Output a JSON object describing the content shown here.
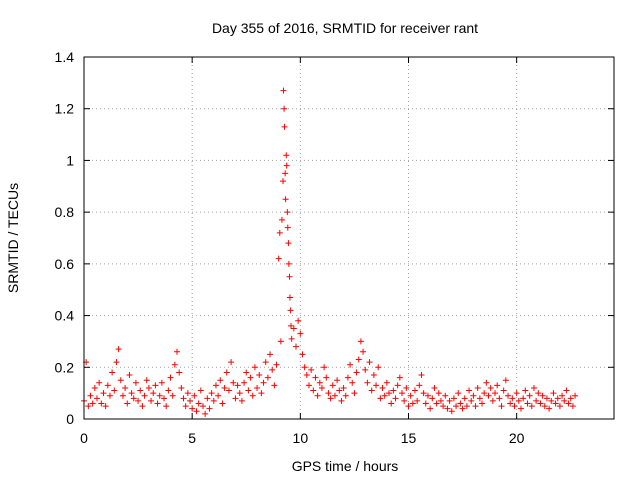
{
  "chart_data": {
    "type": "scatter",
    "title": "Day 355 of 2016, SRMTID for receiver rant",
    "xlabel": "GPS time / hours",
    "ylabel": "SRMTID / TECUs",
    "xlim": [
      0,
      24.5
    ],
    "ylim": [
      0,
      1.4
    ],
    "xticks": [
      0,
      5,
      10,
      15,
      20
    ],
    "xtick_labels": [
      "0",
      "5",
      "10",
      "15",
      "20"
    ],
    "yticks": [
      0,
      0.2,
      0.4,
      0.6,
      0.8,
      1,
      1.2,
      1.4
    ],
    "ytick_labels": [
      "0",
      "0.2",
      "0.4",
      "0.6",
      "0.8",
      "1",
      "1.2",
      "1.4"
    ],
    "grid": true,
    "marker": "+",
    "color": "#ff0000",
    "series": [
      {
        "name": "SRMTID",
        "points": [
          [
            0.0,
            0.07
          ],
          [
            0.1,
            0.22
          ],
          [
            0.2,
            0.05
          ],
          [
            0.3,
            0.09
          ],
          [
            0.4,
            0.06
          ],
          [
            0.5,
            0.12
          ],
          [
            0.6,
            0.08
          ],
          [
            0.7,
            0.14
          ],
          [
            0.8,
            0.06
          ],
          [
            0.9,
            0.1
          ],
          [
            1.0,
            0.05
          ],
          [
            1.1,
            0.13
          ],
          [
            1.2,
            0.09
          ],
          [
            1.3,
            0.18
          ],
          [
            1.4,
            0.11
          ],
          [
            1.5,
            0.22
          ],
          [
            1.6,
            0.27
          ],
          [
            1.7,
            0.15
          ],
          [
            1.8,
            0.09
          ],
          [
            1.9,
            0.12
          ],
          [
            2.0,
            0.06
          ],
          [
            2.1,
            0.17
          ],
          [
            2.2,
            0.1
          ],
          [
            2.3,
            0.08
          ],
          [
            2.4,
            0.14
          ],
          [
            2.5,
            0.07
          ],
          [
            2.6,
            0.11
          ],
          [
            2.7,
            0.05
          ],
          [
            2.8,
            0.09
          ],
          [
            2.9,
            0.15
          ],
          [
            3.0,
            0.12
          ],
          [
            3.1,
            0.07
          ],
          [
            3.2,
            0.1
          ],
          [
            3.3,
            0.13
          ],
          [
            3.4,
            0.06
          ],
          [
            3.5,
            0.09
          ],
          [
            3.6,
            0.14
          ],
          [
            3.7,
            0.08
          ],
          [
            3.8,
            0.05
          ],
          [
            3.9,
            0.11
          ],
          [
            4.0,
            0.16
          ],
          [
            4.1,
            0.09
          ],
          [
            4.2,
            0.21
          ],
          [
            4.3,
            0.26
          ],
          [
            4.4,
            0.18
          ],
          [
            4.5,
            0.12
          ],
          [
            4.6,
            0.08
          ],
          [
            4.7,
            0.05
          ],
          [
            4.8,
            0.1
          ],
          [
            4.9,
            0.07
          ],
          [
            5.0,
            0.04
          ],
          [
            5.1,
            0.09
          ],
          [
            5.2,
            0.03
          ],
          [
            5.3,
            0.06
          ],
          [
            5.4,
            0.11
          ],
          [
            5.5,
            0.05
          ],
          [
            5.6,
            0.02
          ],
          [
            5.7,
            0.08
          ],
          [
            5.8,
            0.04
          ],
          [
            5.9,
            0.1
          ],
          [
            6.0,
            0.07
          ],
          [
            6.1,
            0.13
          ],
          [
            6.2,
            0.09
          ],
          [
            6.3,
            0.15
          ],
          [
            6.4,
            0.06
          ],
          [
            6.5,
            0.12
          ],
          [
            6.6,
            0.18
          ],
          [
            6.7,
            0.11
          ],
          [
            6.8,
            0.22
          ],
          [
            6.9,
            0.14
          ],
          [
            7.0,
            0.08
          ],
          [
            7.1,
            0.13
          ],
          [
            7.2,
            0.1
          ],
          [
            7.3,
            0.07
          ],
          [
            7.4,
            0.14
          ],
          [
            7.5,
            0.18
          ],
          [
            7.6,
            0.11
          ],
          [
            7.7,
            0.16
          ],
          [
            7.8,
            0.09
          ],
          [
            7.9,
            0.2
          ],
          [
            8.0,
            0.12
          ],
          [
            8.1,
            0.17
          ],
          [
            8.2,
            0.1
          ],
          [
            8.3,
            0.14
          ],
          [
            8.4,
            0.22
          ],
          [
            8.5,
            0.16
          ],
          [
            8.6,
            0.25
          ],
          [
            8.7,
            0.19
          ],
          [
            8.8,
            0.13
          ],
          [
            8.9,
            0.21
          ],
          [
            9.0,
            0.62
          ],
          [
            9.05,
            0.72
          ],
          [
            9.1,
            0.3
          ],
          [
            9.15,
            0.77
          ],
          [
            9.2,
            0.92
          ],
          [
            9.22,
            1.27
          ],
          [
            9.25,
            1.2
          ],
          [
            9.27,
            1.13
          ],
          [
            9.3,
            0.95
          ],
          [
            9.32,
            0.85
          ],
          [
            9.35,
            1.02
          ],
          [
            9.37,
            0.98
          ],
          [
            9.4,
            0.8
          ],
          [
            9.42,
            0.74
          ],
          [
            9.45,
            0.68
          ],
          [
            9.47,
            0.6
          ],
          [
            9.5,
            0.55
          ],
          [
            9.52,
            0.47
          ],
          [
            9.55,
            0.42
          ],
          [
            9.57,
            0.36
          ],
          [
            9.6,
            0.31
          ],
          [
            9.7,
            0.35
          ],
          [
            9.8,
            0.28
          ],
          [
            9.9,
            0.38
          ],
          [
            10.0,
            0.33
          ],
          [
            10.1,
            0.25
          ],
          [
            10.2,
            0.2
          ],
          [
            10.3,
            0.17
          ],
          [
            10.4,
            0.13
          ],
          [
            10.5,
            0.19
          ],
          [
            10.6,
            0.11
          ],
          [
            10.7,
            0.16
          ],
          [
            10.8,
            0.09
          ],
          [
            10.9,
            0.14
          ],
          [
            11.0,
            0.12
          ],
          [
            11.1,
            0.2
          ],
          [
            11.2,
            0.16
          ],
          [
            11.3,
            0.1
          ],
          [
            11.4,
            0.08
          ],
          [
            11.5,
            0.13
          ],
          [
            11.6,
            0.09
          ],
          [
            11.7,
            0.15
          ],
          [
            11.8,
            0.11
          ],
          [
            11.9,
            0.07
          ],
          [
            12.0,
            0.12
          ],
          [
            12.1,
            0.09
          ],
          [
            12.2,
            0.16
          ],
          [
            12.3,
            0.21
          ],
          [
            12.4,
            0.14
          ],
          [
            12.5,
            0.1
          ],
          [
            12.6,
            0.18
          ],
          [
            12.7,
            0.23
          ],
          [
            12.8,
            0.3
          ],
          [
            12.9,
            0.26
          ],
          [
            13.0,
            0.19
          ],
          [
            13.1,
            0.14
          ],
          [
            13.2,
            0.22
          ],
          [
            13.3,
            0.11
          ],
          [
            13.4,
            0.17
          ],
          [
            13.5,
            0.13
          ],
          [
            13.6,
            0.2
          ],
          [
            13.7,
            0.08
          ],
          [
            13.8,
            0.12
          ],
          [
            13.9,
            0.09
          ],
          [
            14.0,
            0.14
          ],
          [
            14.1,
            0.1
          ],
          [
            14.2,
            0.06
          ],
          [
            14.3,
            0.11
          ],
          [
            14.4,
            0.08
          ],
          [
            14.5,
            0.13
          ],
          [
            14.6,
            0.16
          ],
          [
            14.7,
            0.1
          ],
          [
            14.8,
            0.07
          ],
          [
            14.9,
            0.12
          ],
          [
            15.0,
            0.05
          ],
          [
            15.1,
            0.09
          ],
          [
            15.2,
            0.06
          ],
          [
            15.3,
            0.11
          ],
          [
            15.4,
            0.07
          ],
          [
            15.5,
            0.13
          ],
          [
            15.6,
            0.17
          ],
          [
            15.7,
            0.1
          ],
          [
            15.8,
            0.06
          ],
          [
            15.9,
            0.09
          ],
          [
            16.0,
            0.04
          ],
          [
            16.1,
            0.08
          ],
          [
            16.2,
            0.12
          ],
          [
            16.3,
            0.06
          ],
          [
            16.4,
            0.1
          ],
          [
            16.5,
            0.07
          ],
          [
            16.6,
            0.05
          ],
          [
            16.7,
            0.09
          ],
          [
            16.8,
            0.04
          ],
          [
            16.9,
            0.07
          ],
          [
            17.0,
            0.03
          ],
          [
            17.1,
            0.08
          ],
          [
            17.2,
            0.05
          ],
          [
            17.3,
            0.1
          ],
          [
            17.4,
            0.06
          ],
          [
            17.5,
            0.04
          ],
          [
            17.6,
            0.08
          ],
          [
            17.7,
            0.05
          ],
          [
            17.8,
            0.11
          ],
          [
            17.9,
            0.07
          ],
          [
            18.0,
            0.09
          ],
          [
            18.1,
            0.05
          ],
          [
            18.2,
            0.12
          ],
          [
            18.3,
            0.08
          ],
          [
            18.4,
            0.06
          ],
          [
            18.5,
            0.1
          ],
          [
            18.6,
            0.14
          ],
          [
            18.7,
            0.09
          ],
          [
            18.8,
            0.12
          ],
          [
            18.9,
            0.07
          ],
          [
            19.0,
            0.1
          ],
          [
            19.1,
            0.13
          ],
          [
            19.2,
            0.08
          ],
          [
            19.3,
            0.05
          ],
          [
            19.4,
            0.11
          ],
          [
            19.5,
            0.15
          ],
          [
            19.6,
            0.09
          ],
          [
            19.7,
            0.06
          ],
          [
            19.8,
            0.08
          ],
          [
            19.9,
            0.05
          ],
          [
            20.0,
            0.1
          ],
          [
            20.1,
            0.07
          ],
          [
            20.2,
            0.04
          ],
          [
            20.3,
            0.08
          ],
          [
            20.4,
            0.11
          ],
          [
            20.5,
            0.06
          ],
          [
            20.6,
            0.09
          ],
          [
            20.7,
            0.05
          ],
          [
            20.8,
            0.12
          ],
          [
            20.9,
            0.07
          ],
          [
            21.0,
            0.1
          ],
          [
            21.1,
            0.06
          ],
          [
            21.2,
            0.09
          ],
          [
            21.3,
            0.05
          ],
          [
            21.4,
            0.08
          ],
          [
            21.5,
            0.04
          ],
          [
            21.6,
            0.07
          ],
          [
            21.7,
            0.1
          ],
          [
            21.8,
            0.06
          ],
          [
            21.9,
            0.08
          ],
          [
            22.0,
            0.05
          ],
          [
            22.1,
            0.09
          ],
          [
            22.2,
            0.07
          ],
          [
            22.3,
            0.11
          ],
          [
            22.4,
            0.06
          ],
          [
            22.5,
            0.08
          ],
          [
            22.6,
            0.05
          ],
          [
            22.7,
            0.09
          ]
        ]
      }
    ]
  }
}
